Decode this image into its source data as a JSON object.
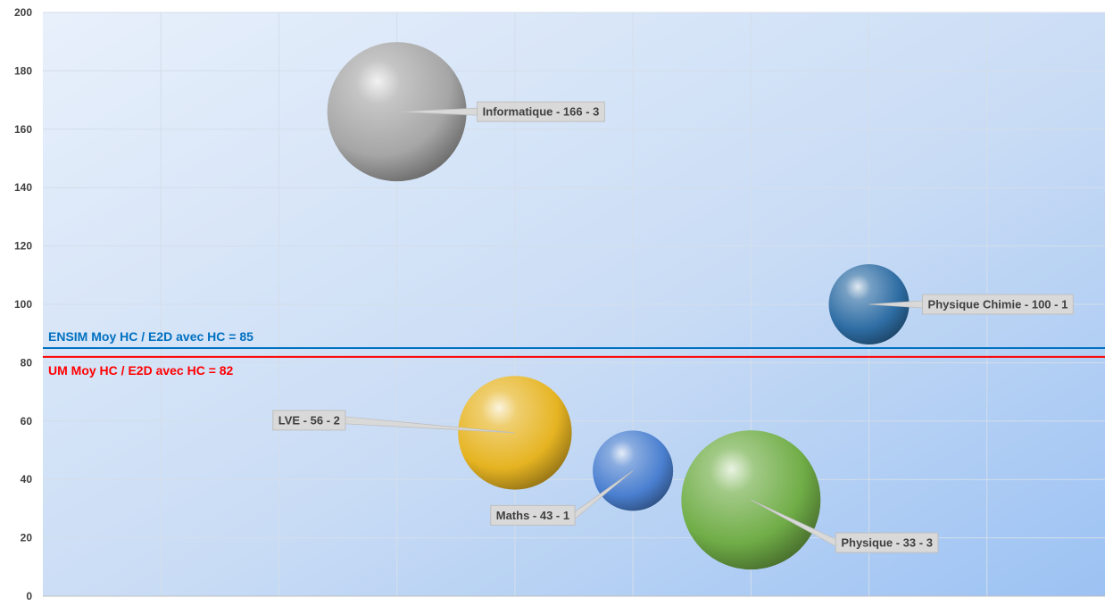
{
  "chart_data": {
    "type": "bubble",
    "title": "",
    "xlabel": "",
    "ylabel": "",
    "ylim": [
      0,
      200
    ],
    "xlim": [
      0,
      9
    ],
    "y_ticks": [
      "0",
      "20",
      "40",
      "60",
      "80",
      "100",
      "120",
      "140",
      "160",
      "180",
      "200"
    ],
    "grid": true,
    "legend": "none",
    "points": [
      {
        "label": "Informatique - 166 - 3",
        "x": 3.0,
        "y": 166,
        "size": 3,
        "color": "#a6a6a6"
      },
      {
        "label": "Physique Chimie - 100 - 1",
        "x": 7.0,
        "y": 100,
        "size": 1,
        "color": "#2e6da4"
      },
      {
        "label": "LVE - 56 - 2",
        "x": 4.0,
        "y": 56,
        "size": 2,
        "color": "#e6b422"
      },
      {
        "label": "Maths - 43 - 1",
        "x": 5.0,
        "y": 43,
        "size": 1,
        "color": "#4a7fd0"
      },
      {
        "label": "Physique - 33 - 3",
        "x": 6.0,
        "y": 33,
        "size": 3,
        "color": "#70ad47"
      }
    ],
    "reference_lines": [
      {
        "label": "ENSIM Moy HC / E2D avec HC = 85",
        "value": 85,
        "color": "#0070c0"
      },
      {
        "label": "UM Moy HC / E2D avec HC = 82",
        "value": 82,
        "color": "#ff0000"
      }
    ]
  }
}
